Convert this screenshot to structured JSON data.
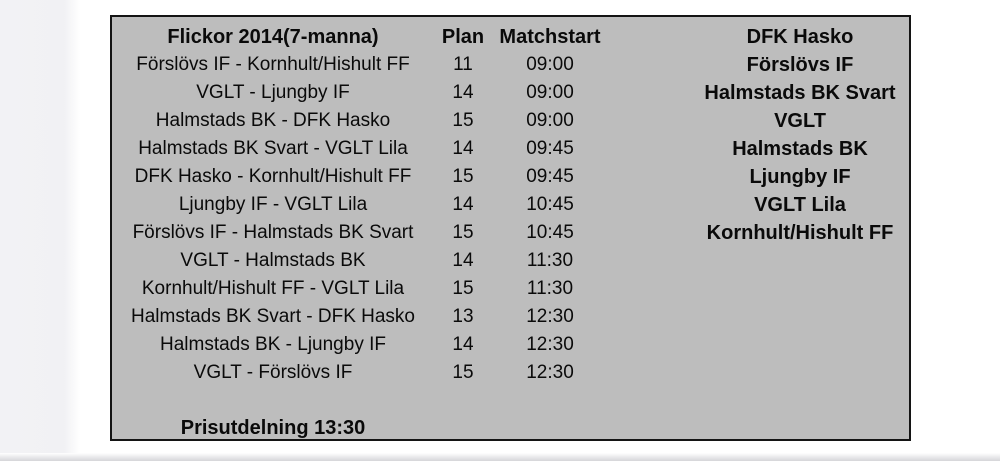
{
  "page": {
    "background_color": "#ffffff",
    "left_strip_color": "#f1f1f4",
    "bottom_strip_color": "#d5d5d9"
  },
  "schedule": {
    "box_fill_color": "#bdbdbd",
    "border_color": "#141414",
    "text_color": "#0a0a0a",
    "title": "Flickor 2014(7-manna)",
    "columns": {
      "plan": "Plan",
      "matchstart": "Matchstart"
    },
    "rows": [
      {
        "match": "Förslövs IF - Kornhult/Hishult FF",
        "plan": "11",
        "start": "09:00"
      },
      {
        "match": "VGLT - Ljungby IF",
        "plan": "14",
        "start": "09:00"
      },
      {
        "match": "Halmstads BK - DFK Hasko",
        "plan": "15",
        "start": "09:00"
      },
      {
        "match": "Halmstads BK Svart - VGLT Lila",
        "plan": "14",
        "start": "09:45"
      },
      {
        "match": "DFK Hasko - Kornhult/Hishult FF",
        "plan": "15",
        "start": "09:45"
      },
      {
        "match": "Ljungby IF - VGLT Lila",
        "plan": "14",
        "start": "10:45"
      },
      {
        "match": "Förslövs IF - Halmstads BK Svart",
        "plan": "15",
        "start": "10:45"
      },
      {
        "match": "VGLT - Halmstads BK",
        "plan": "14",
        "start": "11:30"
      },
      {
        "match": "Kornhult/Hishult FF - VGLT Lila",
        "plan": "15",
        "start": "11:30"
      },
      {
        "match": "Halmstads BK Svart - DFK Hasko",
        "plan": "13",
        "start": "12:30"
      },
      {
        "match": "Halmstads BK - Ljungby IF",
        "plan": "14",
        "start": "12:30"
      },
      {
        "match": "VGLT - Förslövs IF",
        "plan": "15",
        "start": "12:30"
      }
    ],
    "footer": "Prisutdelning 13:30"
  },
  "teams": {
    "list": [
      "DFK Hasko",
      "Förslövs IF",
      "Halmstads BK Svart",
      "VGLT",
      "Halmstads BK",
      "Ljungby IF",
      "VGLT Lila",
      "Kornhult/Hishult FF"
    ]
  }
}
